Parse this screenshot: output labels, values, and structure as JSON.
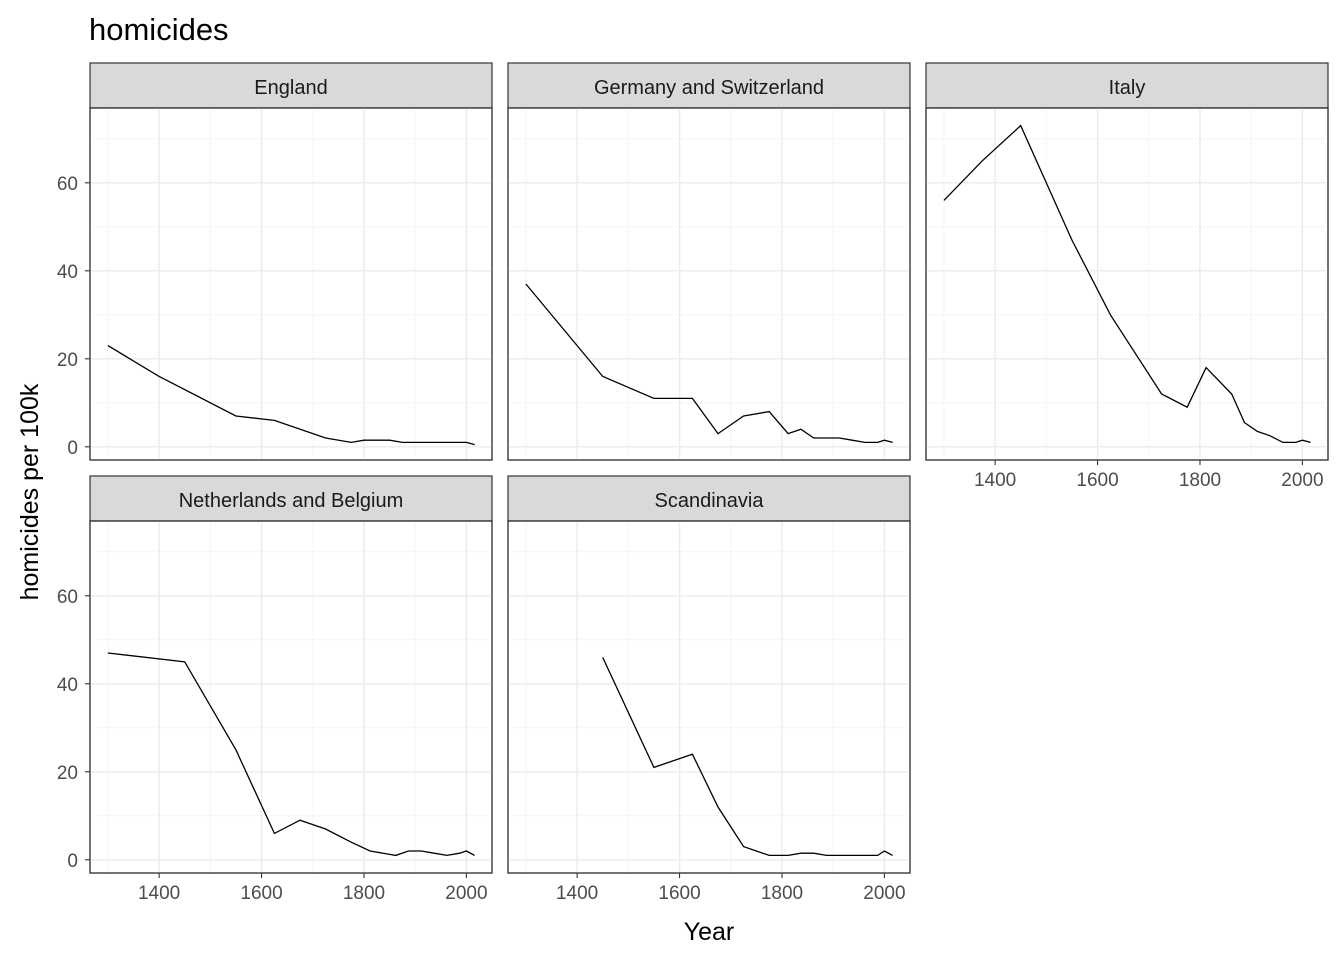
{
  "chart_data": {
    "type": "line",
    "title": "homicides",
    "xlabel": "Year",
    "ylabel": "homicides per 100k",
    "xlim": [
      1265,
      2050
    ],
    "ylim": [
      -3,
      77
    ],
    "x_ticks": [
      "1400",
      "1600",
      "1800",
      "2000"
    ],
    "y_ticks": [
      "0",
      "20",
      "40",
      "60"
    ],
    "x_tick_values": [
      1400,
      1600,
      1800,
      2000
    ],
    "y_tick_values": [
      0,
      20,
      40,
      60
    ],
    "grid": true,
    "facets": [
      {
        "name": "England",
        "x": [
          1300,
          1400,
          1550,
          1625,
          1725,
          1775,
          1800,
          1825,
          1850,
          1875,
          1900,
          1925,
          1950,
          1975,
          2000,
          2016
        ],
        "y": [
          23,
          16,
          7,
          6,
          2,
          1,
          1.5,
          1.5,
          1.5,
          1,
          1,
          1,
          1,
          1,
          1,
          0.5
        ]
      },
      {
        "name": "Germany and Switzerland",
        "x": [
          1300,
          1450,
          1550,
          1625,
          1675,
          1725,
          1775,
          1812,
          1837,
          1862,
          1887,
          1912,
          1937,
          1962,
          1987,
          2000,
          2016
        ],
        "y": [
          37,
          16,
          11,
          11,
          3,
          7,
          8,
          3,
          4,
          2,
          2,
          2,
          1.5,
          1,
          1,
          1.5,
          1
        ]
      },
      {
        "name": "Italy",
        "x": [
          1300,
          1375,
          1450,
          1550,
          1625,
          1725,
          1775,
          1812,
          1862,
          1887,
          1912,
          1937,
          1962,
          1987,
          2000,
          2016
        ],
        "y": [
          56,
          65,
          73,
          47,
          30,
          12,
          9,
          18,
          12,
          5.5,
          3.5,
          2.5,
          1,
          1,
          1.5,
          1
        ]
      },
      {
        "name": "Netherlands and Belgium",
        "x": [
          1300,
          1450,
          1550,
          1625,
          1675,
          1725,
          1775,
          1812,
          1862,
          1887,
          1912,
          1937,
          1962,
          1987,
          2000,
          2016
        ],
        "y": [
          47,
          45,
          25,
          6,
          9,
          7,
          4,
          2,
          1,
          2,
          2,
          1.5,
          1,
          1.5,
          2,
          1
        ]
      },
      {
        "name": "Scandinavia",
        "x": [
          1450,
          1550,
          1625,
          1675,
          1725,
          1775,
          1812,
          1837,
          1862,
          1887,
          1912,
          1937,
          1962,
          1987,
          2000,
          2016
        ],
        "y": [
          46,
          21,
          24,
          12,
          3,
          1,
          1,
          1.5,
          1.5,
          1,
          1,
          1,
          1,
          1,
          2,
          1
        ]
      }
    ]
  }
}
